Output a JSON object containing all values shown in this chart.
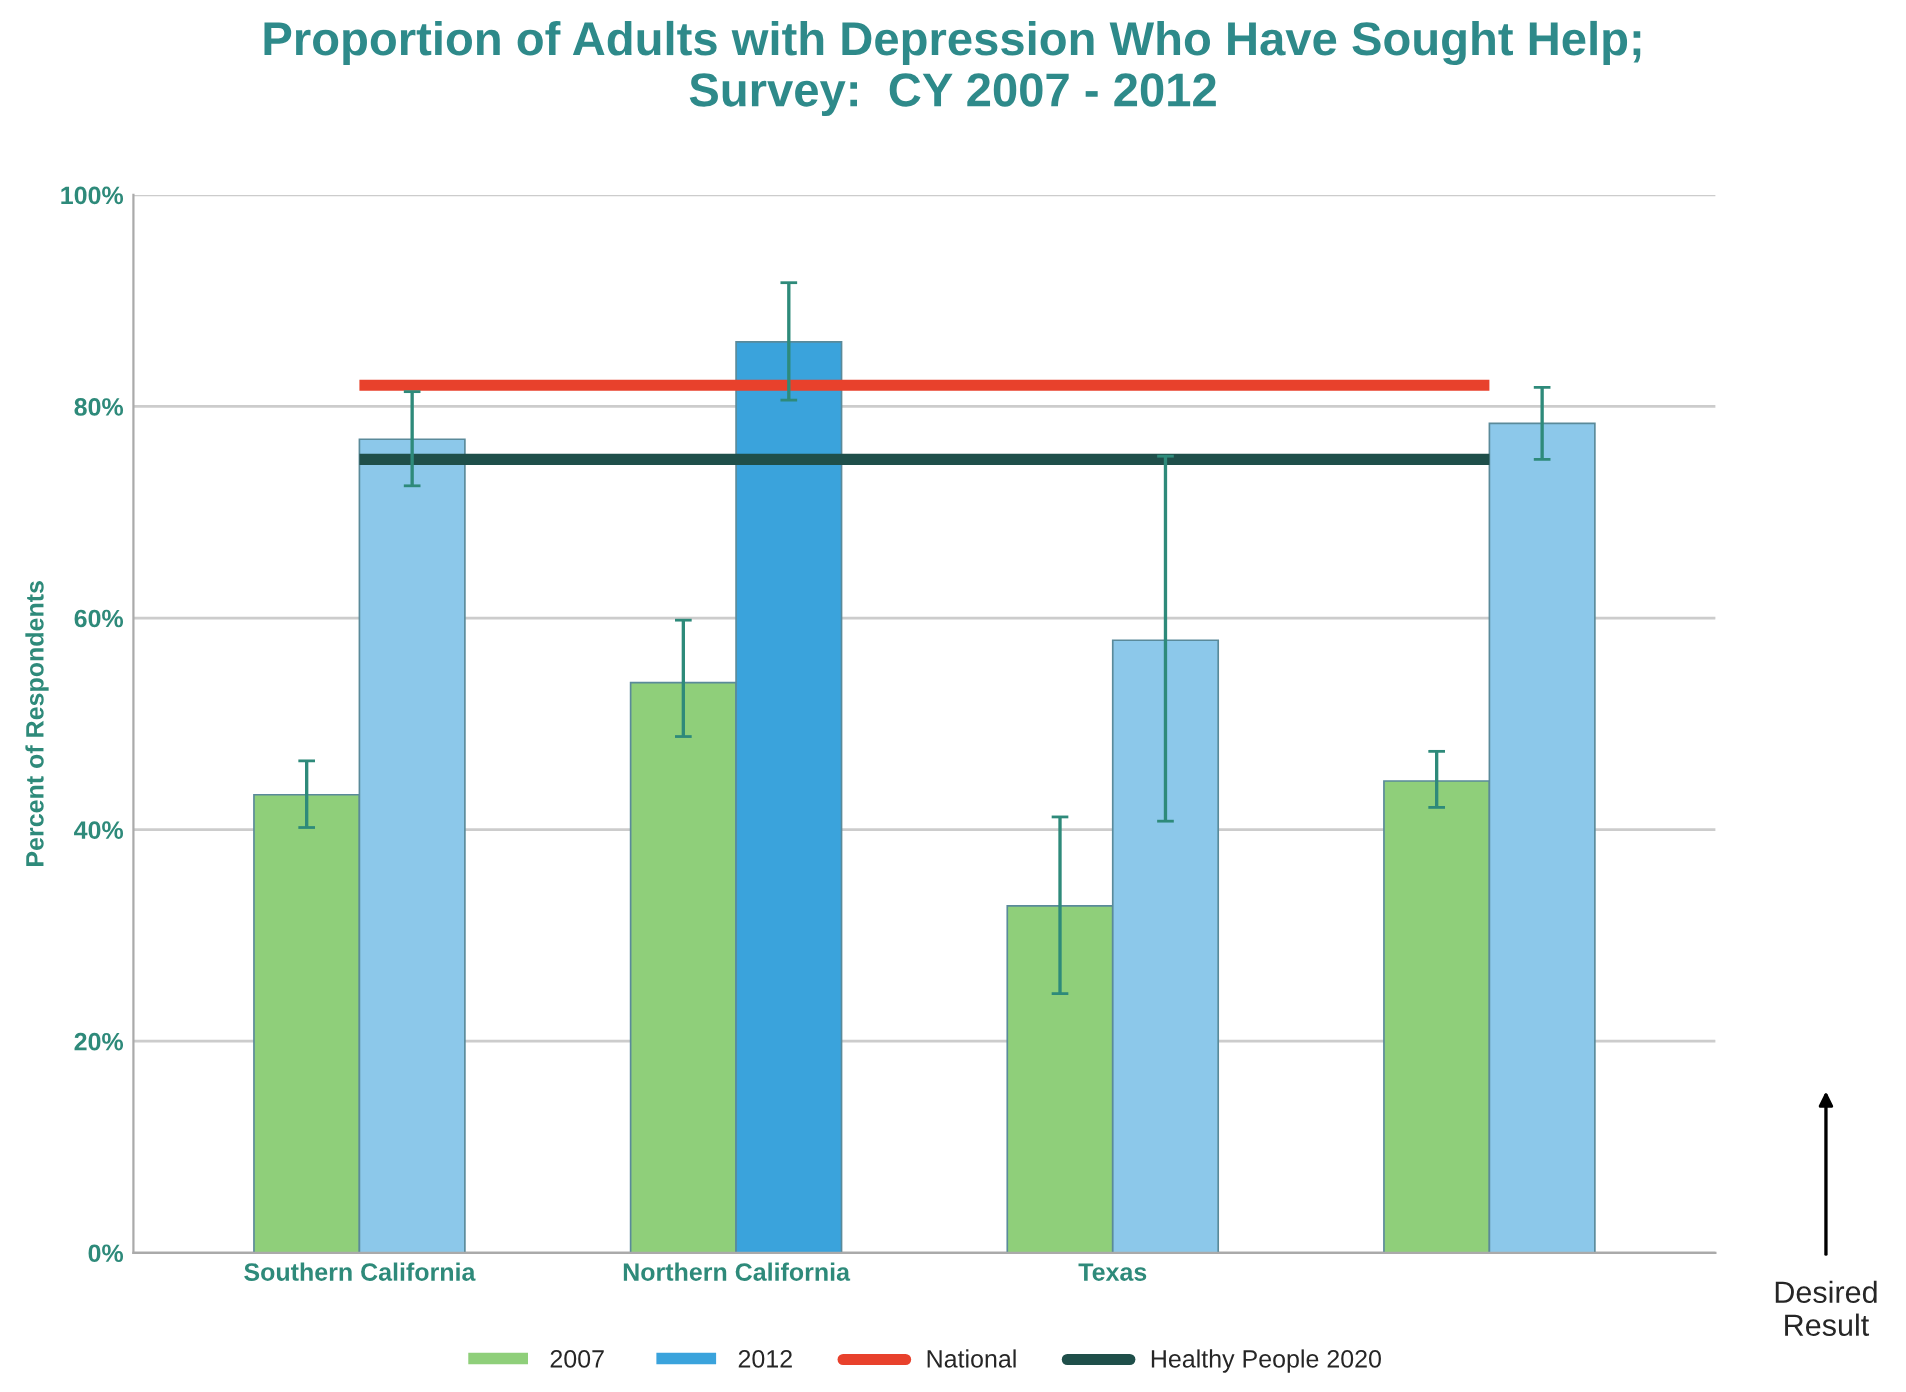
{
  "chart_data": {
    "type": "bar",
    "title": "Proportion of Adults with Depression Who Have Sought Help;\nSurvey:  CY 2007 - 2012",
    "ylabel": "Percent of Respondents",
    "categories": [
      "Southern California",
      "Northern California",
      "Texas",
      null
    ],
    "series": [
      {
        "name": "2007",
        "color": "#8fcf7a",
        "values": [
          43.3,
          53.9,
          32.8,
          44.6
        ],
        "errors": [
          [
            40.2,
            46.5
          ],
          [
            48.8,
            59.8
          ],
          [
            24.5,
            41.2
          ],
          [
            42.1,
            47.4
          ]
        ]
      },
      {
        "name": "2012",
        "color": "#3aa3dc",
        "colors": [
          "#8cc8ea",
          "#3aa3dc",
          "#8cc8ea",
          "#8cc8ea"
        ],
        "values": [
          76.9,
          86.1,
          57.9,
          78.4
        ],
        "errors": [
          [
            72.5,
            81.4
          ],
          [
            80.6,
            91.7
          ],
          [
            40.8,
            75.3
          ],
          [
            75.0,
            81.8
          ]
        ]
      }
    ],
    "ref_lines": [
      {
        "axis": "y",
        "value": 82,
        "label": "National",
        "color": "#e8412c"
      },
      {
        "axis": "y",
        "value": 75,
        "label": "Healthy People 2020",
        "color": "#1f4f4a"
      }
    ],
    "ylim": [
      0,
      100
    ],
    "yticks": [
      {
        "value": 0,
        "label": "0%"
      },
      {
        "value": 20,
        "label": "20%"
      },
      {
        "value": 40,
        "label": "40%"
      },
      {
        "value": 60,
        "label": "60%"
      },
      {
        "value": 80,
        "label": "80%"
      },
      {
        "value": 100,
        "label": "100%"
      }
    ],
    "grid": "y",
    "legend": "bottom",
    "annotations": [
      "Desired\nResult"
    ]
  }
}
